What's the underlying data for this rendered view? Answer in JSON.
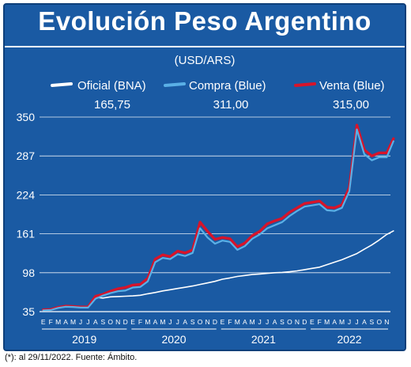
{
  "header": {
    "title": "Evolución Peso Argentino",
    "subtitle": "(USD/ARS)"
  },
  "footnote": "(*): al 29/11/2022. Fuente: Ámbito.",
  "colors": {
    "background": "#1a5aa3",
    "oficial": "#ffffff",
    "compra": "#5ab0e6",
    "venta": "#d7142a",
    "grid": "#ffffff",
    "axis_text": "#ffffff"
  },
  "chart_data": {
    "type": "line",
    "title": "Evolución Peso Argentino",
    "subtitle": "(USD/ARS)",
    "xlabel": "",
    "ylabel": "",
    "ylim": [
      35,
      350
    ],
    "yticks": [
      35,
      98,
      161,
      224,
      287,
      350
    ],
    "grid": true,
    "legend_position": "top",
    "month_labels": [
      "E",
      "F",
      "M",
      "A",
      "M",
      "J",
      "J",
      "A",
      "S",
      "O",
      "N",
      "D"
    ],
    "years": [
      "2019",
      "2020",
      "2021",
      "2022"
    ],
    "x_unit": "months since Jan 2019",
    "series": [
      {
        "name": "Oficial (BNA)",
        "last_value": "165,75",
        "points": [
          [
            0,
            37.5
          ],
          [
            1,
            38.5
          ],
          [
            2,
            41
          ],
          [
            3,
            43
          ],
          [
            4,
            44
          ],
          [
            5,
            42.5
          ],
          [
            6,
            42
          ],
          [
            7,
            58
          ],
          [
            8,
            57
          ],
          [
            9,
            59
          ],
          [
            10,
            59.5
          ],
          [
            11,
            60
          ],
          [
            12,
            60.5
          ],
          [
            13,
            61.5
          ],
          [
            14,
            64
          ],
          [
            15,
            66
          ],
          [
            16,
            68.5
          ],
          [
            17,
            70.5
          ],
          [
            18,
            72.5
          ],
          [
            19,
            74.5
          ],
          [
            20,
            76.5
          ],
          [
            21,
            79
          ],
          [
            22,
            81.5
          ],
          [
            23,
            84
          ],
          [
            24,
            87.5
          ],
          [
            25,
            89.5
          ],
          [
            26,
            92
          ],
          [
            27,
            93.5
          ],
          [
            28,
            95
          ],
          [
            29,
            96
          ],
          [
            30,
            97
          ],
          [
            31,
            98
          ],
          [
            32,
            98.5
          ],
          [
            33,
            99.5
          ],
          [
            34,
            101
          ],
          [
            35,
            103
          ],
          [
            36,
            105
          ],
          [
            37,
            107
          ],
          [
            38,
            111
          ],
          [
            39,
            115
          ],
          [
            40,
            119
          ],
          [
            41,
            124
          ],
          [
            42,
            129
          ],
          [
            43,
            136
          ],
          [
            44,
            143
          ],
          [
            45,
            151
          ],
          [
            46,
            160
          ],
          [
            46.9,
            165.75
          ]
        ]
      },
      {
        "name": "Compra (Blue)",
        "last_value": "311,00",
        "points": [
          [
            0,
            37
          ],
          [
            1,
            37.5
          ],
          [
            2,
            41
          ],
          [
            3,
            43
          ],
          [
            4,
            42.5
          ],
          [
            5,
            41.5
          ],
          [
            6,
            41.5
          ],
          [
            7,
            56
          ],
          [
            8,
            61
          ],
          [
            9,
            65
          ],
          [
            10,
            68
          ],
          [
            11,
            69
          ],
          [
            12,
            74
          ],
          [
            13,
            75
          ],
          [
            14,
            84
          ],
          [
            15,
            115
          ],
          [
            16,
            122
          ],
          [
            17,
            120
          ],
          [
            18,
            128
          ],
          [
            19,
            125
          ],
          [
            20,
            130
          ],
          [
            21,
            170
          ],
          [
            22,
            155
          ],
          [
            23,
            145
          ],
          [
            24,
            150
          ],
          [
            25,
            148
          ],
          [
            26,
            135
          ],
          [
            27,
            141
          ],
          [
            28,
            153
          ],
          [
            29,
            160
          ],
          [
            30,
            170
          ],
          [
            31,
            175
          ],
          [
            32,
            180
          ],
          [
            33,
            190
          ],
          [
            34,
            198
          ],
          [
            35,
            205
          ],
          [
            36,
            207
          ],
          [
            37,
            209
          ],
          [
            38,
            199
          ],
          [
            39,
            198
          ],
          [
            40,
            203
          ],
          [
            41,
            230
          ],
          [
            42,
            330
          ],
          [
            43,
            290
          ],
          [
            44,
            280
          ],
          [
            45,
            285
          ],
          [
            46,
            285
          ],
          [
            46.9,
            311
          ]
        ]
      },
      {
        "name": "Venta (Blue)",
        "last_value": "315,00",
        "points": [
          [
            0,
            38
          ],
          [
            1,
            38.5
          ],
          [
            2,
            42
          ],
          [
            3,
            44
          ],
          [
            4,
            43.5
          ],
          [
            5,
            42.5
          ],
          [
            6,
            42.5
          ],
          [
            7,
            60
          ],
          [
            8,
            63
          ],
          [
            9,
            68
          ],
          [
            10,
            72
          ],
          [
            11,
            74
          ],
          [
            12,
            78
          ],
          [
            13,
            79
          ],
          [
            14,
            89
          ],
          [
            15,
            120
          ],
          [
            16,
            127
          ],
          [
            17,
            124
          ],
          [
            18,
            133
          ],
          [
            19,
            130
          ],
          [
            20,
            135
          ],
          [
            21,
            180
          ],
          [
            22,
            165
          ],
          [
            23,
            152
          ],
          [
            24,
            155
          ],
          [
            25,
            153
          ],
          [
            26,
            140
          ],
          [
            27,
            146
          ],
          [
            28,
            158
          ],
          [
            29,
            165
          ],
          [
            30,
            177
          ],
          [
            31,
            182
          ],
          [
            32,
            186
          ],
          [
            33,
            196
          ],
          [
            34,
            203
          ],
          [
            35,
            210
          ],
          [
            36,
            212
          ],
          [
            37,
            214
          ],
          [
            38,
            204
          ],
          [
            39,
            203
          ],
          [
            40,
            208
          ],
          [
            41,
            236
          ],
          [
            42,
            337
          ],
          [
            43,
            297
          ],
          [
            44,
            287
          ],
          [
            45,
            292
          ],
          [
            46,
            292
          ],
          [
            46.9,
            315
          ]
        ]
      }
    ]
  }
}
